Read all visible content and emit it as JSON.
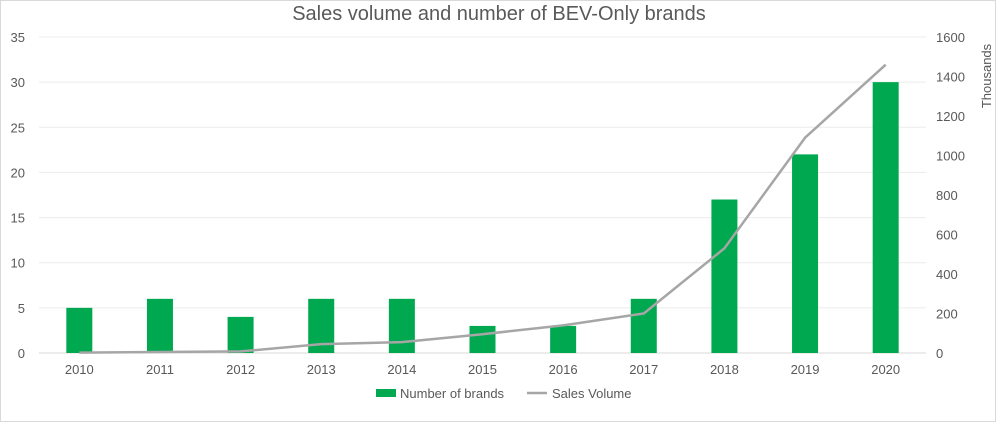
{
  "chart_data": {
    "type": "bar",
    "title": "Sales volume and number of BEV-Only brands",
    "categories": [
      "2010",
      "2011",
      "2012",
      "2013",
      "2014",
      "2015",
      "2016",
      "2017",
      "2018",
      "2019",
      "2020"
    ],
    "series": [
      {
        "name": "Number of brands",
        "type": "bar",
        "axis": "left",
        "color": "#00a84f",
        "values": [
          5,
          6,
          4,
          6,
          6,
          3,
          3,
          6,
          17,
          22,
          30
        ]
      },
      {
        "name": "Sales Volume",
        "type": "line",
        "axis": "right",
        "color": "#a6a6a6",
        "values": [
          2,
          5,
          8,
          45,
          55,
          95,
          140,
          200,
          530,
          1090,
          1460
        ]
      }
    ],
    "y_left": {
      "min": 0,
      "max": 35,
      "step": 5,
      "ticks": [
        "0",
        "5",
        "10",
        "15",
        "20",
        "25",
        "30",
        "35"
      ]
    },
    "y_right": {
      "min": 0,
      "max": 1600,
      "step": 200,
      "label": "Thousands",
      "ticks": [
        "0",
        "200",
        "400",
        "600",
        "800",
        "1000",
        "1200",
        "1400",
        "1600"
      ]
    },
    "grid": true,
    "legend_position": "bottom"
  }
}
